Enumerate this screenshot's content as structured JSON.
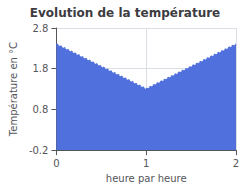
{
  "chart_data": {
    "type": "area",
    "title": "Evolution de la température",
    "xlabel": "heure par heure",
    "ylabel": "Température en °C",
    "x": [
      0,
      1,
      2
    ],
    "values": [
      2.4,
      1.3,
      2.4
    ],
    "xlim": [
      0,
      2
    ],
    "ylim": [
      -0.2,
      2.8
    ],
    "xticks": [
      0,
      1,
      2
    ],
    "yticks": [
      -0.2,
      0.8,
      1.8,
      2.8
    ],
    "grid": true,
    "line_style": "dotted"
  }
}
